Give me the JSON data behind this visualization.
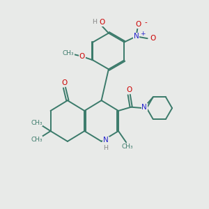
{
  "background_color": "#e8eae8",
  "bond_color": "#3a7a6a",
  "atom_colors": {
    "O": "#cc0000",
    "N": "#2222cc",
    "H": "#888888",
    "C": "#3a7a6a"
  },
  "figsize": [
    3.0,
    3.0
  ],
  "dpi": 100,
  "xlim": [
    0,
    10
  ],
  "ylim": [
    0,
    10
  ]
}
